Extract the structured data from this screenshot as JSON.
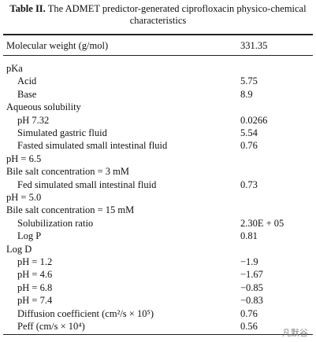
{
  "table": {
    "caption": {
      "label": "Table II.",
      "text": "The ADMET predictor-generated ciprofloxacin physico-chemical characteristics"
    },
    "header": {
      "label": "Molecular weight (g/mol)",
      "value": "331.35"
    },
    "rows": [
      {
        "label": "pKa",
        "indent": false
      },
      {
        "label": "Acid",
        "value": "5.75",
        "indent": true
      },
      {
        "label": "Base",
        "value": "8.9",
        "indent": true
      },
      {
        "label": "Aqueous solubility",
        "indent": false
      },
      {
        "label": "pH 7.32",
        "value": "0.0266",
        "indent": true
      },
      {
        "label": "Simulated gastric fluid",
        "value": "5.54",
        "indent": true
      },
      {
        "label": "Fasted simulated small intestinal fluid",
        "value": "0.76",
        "indent": true
      },
      {
        "label": "pH = 6.5",
        "indent": false
      },
      {
        "label": "Bile salt concentration = 3 mM",
        "indent": false
      },
      {
        "label": "Fed simulated small intestinal fluid",
        "value": "0.73",
        "indent": true
      },
      {
        "label": "pH = 5.0",
        "indent": false
      },
      {
        "label": "Bile salt concentration = 15 mM",
        "indent": false
      },
      {
        "label": "Solubilization ratio",
        "value": "2.30E + 05",
        "indent": true
      },
      {
        "label": "Log P",
        "value": "0.81",
        "indent": true
      },
      {
        "label": "Log D",
        "indent": false
      },
      {
        "label": "pH = 1.2",
        "value": "−1.9",
        "indent": true
      },
      {
        "label": "pH = 4.6",
        "value": "−1.67",
        "indent": true
      },
      {
        "label": "pH = 6.8",
        "value": "−0.85",
        "indent": true
      },
      {
        "label": "pH = 7.4",
        "value": "−0.83",
        "indent": true
      },
      {
        "label": "Diffusion coefficient (cm²/s × 10⁵)",
        "value": "0.76",
        "indent": true
      },
      {
        "label": "Peff (cm/s × 10⁴)",
        "value": "0.56",
        "indent": true
      }
    ]
  },
  "watermark": "凡默谷"
}
